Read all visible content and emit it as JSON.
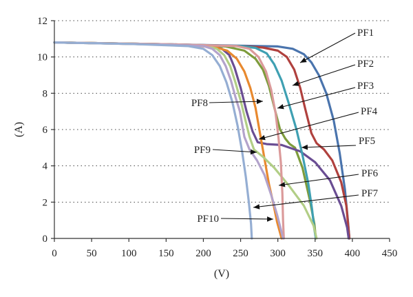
{
  "chart_data": {
    "type": "line",
    "title": "",
    "xlabel": "(V)",
    "ylabel": "(A)",
    "xlim": [
      0,
      450
    ],
    "ylim": [
      0,
      12
    ],
    "x_ticks": [
      "0",
      "50",
      "100",
      "150",
      "200",
      "250",
      "300",
      "350",
      "400",
      "450"
    ],
    "y_ticks": [
      "0",
      "2",
      "4",
      "6",
      "8",
      "10",
      "12"
    ],
    "grid": "horizontal dotted",
    "legend": "none",
    "series": [
      {
        "name": "PF1",
        "color": "#4a74ad",
        "points": [
          [
            0,
            10.8
          ],
          [
            150,
            10.7
          ],
          [
            250,
            10.62
          ],
          [
            300,
            10.58
          ],
          [
            320,
            10.45
          ],
          [
            335,
            10.15
          ],
          [
            345,
            9.7
          ],
          [
            355,
            9.0
          ],
          [
            365,
            8.0
          ],
          [
            375,
            6.5
          ],
          [
            383,
            4.7
          ],
          [
            390,
            2.7
          ],
          [
            394,
            1.0
          ],
          [
            396,
            0
          ]
        ]
      },
      {
        "name": "PF2",
        "color": "#b0413e",
        "points": [
          [
            0,
            10.8
          ],
          [
            150,
            10.7
          ],
          [
            250,
            10.6
          ],
          [
            280,
            10.52
          ],
          [
            300,
            10.35
          ],
          [
            312,
            10.0
          ],
          [
            322,
            9.3
          ],
          [
            330,
            8.3
          ],
          [
            337,
            7.1
          ],
          [
            345,
            5.8
          ],
          [
            352,
            5.25
          ],
          [
            362,
            4.9
          ],
          [
            373,
            4.3
          ],
          [
            385,
            3.1
          ],
          [
            392,
            1.8
          ],
          [
            396,
            0
          ]
        ]
      },
      {
        "name": "PF3",
        "color": "#7e9c3c",
        "points": [
          [
            0,
            10.8
          ],
          [
            150,
            10.7
          ],
          [
            230,
            10.58
          ],
          [
            255,
            10.35
          ],
          [
            270,
            9.9
          ],
          [
            280,
            9.3
          ],
          [
            288,
            8.4
          ],
          [
            296,
            7.1
          ],
          [
            303,
            6.0
          ],
          [
            310,
            5.5
          ],
          [
            316,
            5.2
          ],
          [
            323,
            5.0
          ],
          [
            333,
            3.9
          ],
          [
            343,
            2.1
          ],
          [
            349,
            0.8
          ],
          [
            351,
            0
          ]
        ]
      },
      {
        "name": "PF4",
        "color": "#6a4d93",
        "points": [
          [
            0,
            10.8
          ],
          [
            150,
            10.68
          ],
          [
            210,
            10.6
          ],
          [
            225,
            10.45
          ],
          [
            235,
            10.1
          ],
          [
            242,
            9.4
          ],
          [
            250,
            8.3
          ],
          [
            258,
            7.0
          ],
          [
            266,
            5.9
          ],
          [
            273,
            5.3
          ],
          [
            285,
            5.2
          ],
          [
            305,
            5.15
          ],
          [
            330,
            4.8
          ],
          [
            350,
            4.2
          ],
          [
            370,
            3.2
          ],
          [
            385,
            1.8
          ],
          [
            393,
            0.6
          ],
          [
            395,
            0
          ]
        ]
      },
      {
        "name": "PF5",
        "color": "#3fa0b2",
        "points": [
          [
            0,
            10.8
          ],
          [
            150,
            10.7
          ],
          [
            250,
            10.6
          ],
          [
            270,
            10.5
          ],
          [
            285,
            10.2
          ],
          [
            295,
            9.6
          ],
          [
            305,
            8.7
          ],
          [
            315,
            7.4
          ],
          [
            325,
            6.0
          ],
          [
            333,
            4.6
          ],
          [
            341,
            3.0
          ],
          [
            346,
            1.6
          ],
          [
            349,
            0.5
          ],
          [
            351,
            0
          ]
        ]
      },
      {
        "name": "PF6",
        "color": "#e8892f",
        "points": [
          [
            0,
            10.8
          ],
          [
            150,
            10.7
          ],
          [
            215,
            10.55
          ],
          [
            232,
            10.35
          ],
          [
            245,
            9.9
          ],
          [
            255,
            9.2
          ],
          [
            263,
            8.3
          ],
          [
            270,
            7.2
          ],
          [
            276,
            5.8
          ],
          [
            282,
            4.4
          ],
          [
            288,
            3.0
          ],
          [
            294,
            1.9
          ],
          [
            299,
            0.9
          ],
          [
            305,
            0
          ]
        ]
      },
      {
        "name": "PF7",
        "color": "#b2ce86",
        "points": [
          [
            0,
            10.8
          ],
          [
            150,
            10.68
          ],
          [
            205,
            10.6
          ],
          [
            218,
            10.45
          ],
          [
            228,
            10.1
          ],
          [
            236,
            9.5
          ],
          [
            243,
            8.6
          ],
          [
            250,
            7.6
          ],
          [
            256,
            6.6
          ],
          [
            262,
            5.6
          ],
          [
            268,
            4.9
          ],
          [
            280,
            4.5
          ],
          [
            295,
            3.9
          ],
          [
            315,
            2.9
          ],
          [
            335,
            1.8
          ],
          [
            348,
            0.7
          ],
          [
            352,
            0
          ]
        ]
      },
      {
        "name": "PF8",
        "color": "#db9a9a",
        "points": [
          [
            0,
            10.8
          ],
          [
            150,
            10.7
          ],
          [
            245,
            10.6
          ],
          [
            262,
            10.45
          ],
          [
            274,
            10.0
          ],
          [
            284,
            9.2
          ],
          [
            291,
            8.2
          ],
          [
            297,
            6.9
          ],
          [
            301,
            5.5
          ],
          [
            304,
            4.2
          ],
          [
            306,
            2.5
          ],
          [
            307,
            1.0
          ],
          [
            308,
            0
          ]
        ]
      },
      {
        "name": "PF9",
        "color": "#b3a3cb",
        "points": [
          [
            0,
            10.8
          ],
          [
            150,
            10.68
          ],
          [
            200,
            10.6
          ],
          [
            212,
            10.45
          ],
          [
            222,
            10.1
          ],
          [
            230,
            9.5
          ],
          [
            237,
            8.7
          ],
          [
            243,
            7.8
          ],
          [
            249,
            7.0
          ],
          [
            255,
            5.6
          ],
          [
            262,
            4.9
          ],
          [
            272,
            4.3
          ],
          [
            282,
            3.5
          ],
          [
            291,
            2.4
          ],
          [
            299,
            1.3
          ],
          [
            304,
            0.5
          ],
          [
            307,
            0
          ]
        ]
      },
      {
        "name": "PF10",
        "color": "#95aed3",
        "points": [
          [
            0,
            10.8
          ],
          [
            100,
            10.72
          ],
          [
            180,
            10.6
          ],
          [
            200,
            10.45
          ],
          [
            212,
            10.1
          ],
          [
            222,
            9.5
          ],
          [
            231,
            8.6
          ],
          [
            239,
            7.5
          ],
          [
            246,
            6.2
          ],
          [
            252,
            4.8
          ],
          [
            257,
            3.4
          ],
          [
            261,
            2.0
          ],
          [
            264,
            0.8
          ],
          [
            265,
            0
          ]
        ]
      }
    ],
    "annotations": [
      {
        "label": "PF1"
      },
      {
        "label": "PF2"
      },
      {
        "label": "PF3"
      },
      {
        "label": "PF4"
      },
      {
        "label": "PF5"
      },
      {
        "label": "PF6"
      },
      {
        "label": "PF7"
      },
      {
        "label": "PF8"
      },
      {
        "label": "PF9"
      },
      {
        "label": "PF10"
      }
    ]
  }
}
